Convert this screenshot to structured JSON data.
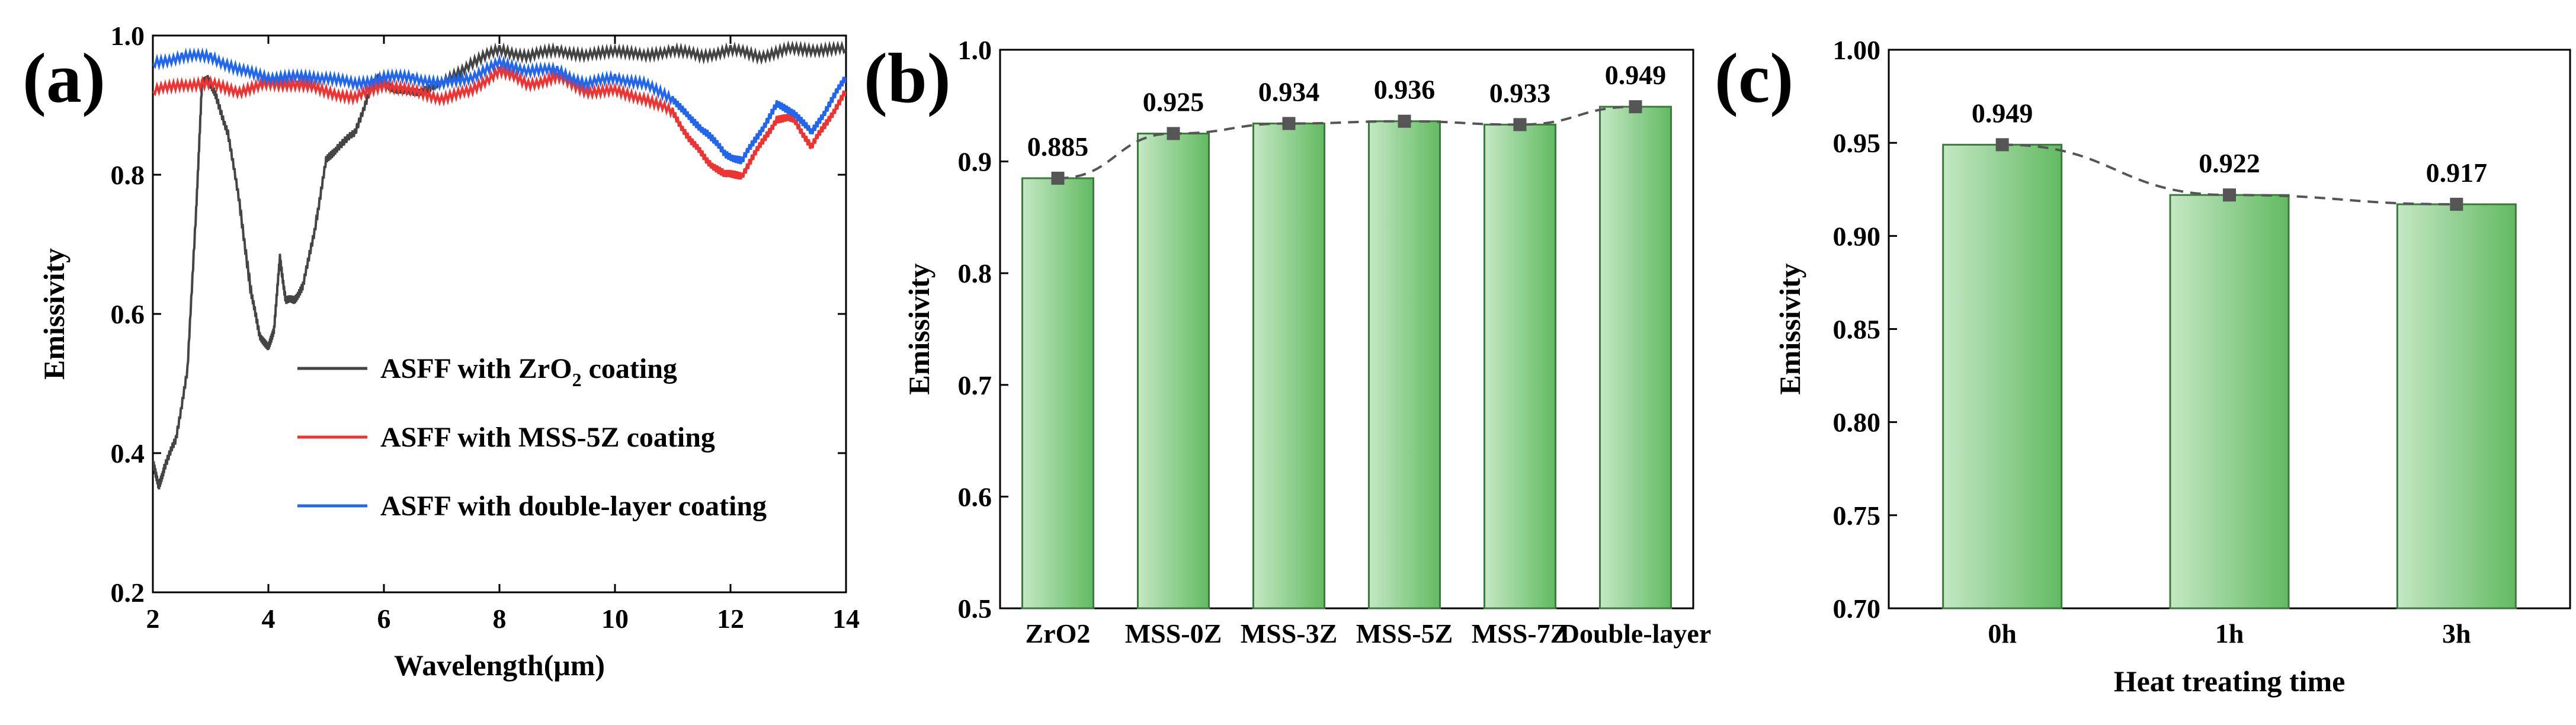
{
  "figure": {
    "panel_labels": [
      "(a)",
      "(b)",
      "(c)"
    ],
    "colors": {
      "axis": "#000000",
      "bar_light": "#bfe6bf",
      "bar_dark": "#6cc06c",
      "bar_edge": "#3a7a3a",
      "connector": "#555555",
      "series_black": "#444444",
      "series_red": "#ee3333",
      "series_blue": "#2266ee"
    }
  },
  "chart_data": [
    {
      "type": "line",
      "panel": "(a)",
      "xlabel": "Wavelength(μm)",
      "ylabel": "Emissivity",
      "xlim": [
        2,
        14
      ],
      "ylim": [
        0.2,
        1.0
      ],
      "xticks": [
        2,
        4,
        6,
        8,
        10,
        12,
        14
      ],
      "yticks": [
        0.2,
        0.4,
        0.6,
        0.8,
        1.0
      ],
      "xtick_labels": [
        "2",
        "4",
        "6",
        "8",
        "10",
        "12",
        "14"
      ],
      "ytick_labels": [
        "0.2",
        "0.4",
        "0.6",
        "0.8",
        "1.0"
      ],
      "legend_position": "center-right",
      "series": [
        {
          "name": "ASFF with ZrO2 coating",
          "name_main": "ASFF with ZrO",
          "name_sub": "2",
          "name_tail": " coating",
          "color_key": "series_black",
          "x": [
            2.0,
            2.1,
            2.2,
            2.4,
            2.6,
            2.75,
            2.85,
            2.95,
            3.1,
            3.3,
            3.5,
            3.7,
            3.85,
            4.0,
            4.1,
            4.2,
            4.3,
            4.45,
            4.6,
            4.8,
            5.0,
            5.2,
            5.5,
            5.75,
            5.9,
            6.2,
            6.6,
            7.0,
            7.5,
            8.0,
            8.5,
            9.0,
            9.5,
            10.0,
            10.5,
            11.0,
            11.5,
            12.0,
            12.5,
            13.0,
            13.5,
            14.0
          ],
          "y": [
            0.39,
            0.35,
            0.38,
            0.42,
            0.52,
            0.75,
            0.93,
            0.94,
            0.91,
            0.86,
            0.76,
            0.63,
            0.57,
            0.55,
            0.58,
            0.68,
            0.62,
            0.62,
            0.64,
            0.72,
            0.82,
            0.84,
            0.86,
            0.92,
            0.94,
            0.92,
            0.92,
            0.93,
            0.96,
            0.98,
            0.97,
            0.98,
            0.97,
            0.98,
            0.97,
            0.98,
            0.97,
            0.98,
            0.97,
            0.98,
            0.98,
            0.98
          ]
        },
        {
          "name": "ASFF with MSS-5Z coating",
          "color_key": "series_red",
          "x": [
            2.0,
            2.5,
            3.0,
            3.5,
            4.0,
            4.5,
            5.0,
            5.5,
            6.0,
            6.5,
            7.0,
            7.5,
            8.0,
            8.5,
            9.0,
            9.5,
            10.0,
            10.5,
            11.0,
            11.3,
            11.6,
            11.9,
            12.2,
            12.5,
            12.8,
            13.1,
            13.4,
            13.7,
            14.0
          ],
          "y": [
            0.92,
            0.93,
            0.93,
            0.92,
            0.93,
            0.93,
            0.92,
            0.91,
            0.93,
            0.92,
            0.91,
            0.92,
            0.95,
            0.93,
            0.94,
            0.92,
            0.92,
            0.91,
            0.89,
            0.85,
            0.82,
            0.8,
            0.8,
            0.84,
            0.88,
            0.88,
            0.84,
            0.88,
            0.92
          ]
        },
        {
          "name": "ASFF with double-layer coating",
          "color_key": "series_blue",
          "x": [
            2.0,
            2.5,
            3.0,
            3.5,
            4.0,
            4.5,
            5.0,
            5.5,
            6.0,
            6.5,
            7.0,
            7.5,
            8.0,
            8.5,
            9.0,
            9.5,
            10.0,
            10.5,
            11.0,
            11.3,
            11.6,
            11.9,
            12.2,
            12.5,
            12.8,
            13.1,
            13.4,
            13.7,
            14.0
          ],
          "y": [
            0.96,
            0.97,
            0.97,
            0.95,
            0.94,
            0.94,
            0.94,
            0.93,
            0.94,
            0.94,
            0.93,
            0.94,
            0.96,
            0.95,
            0.95,
            0.93,
            0.94,
            0.93,
            0.91,
            0.88,
            0.86,
            0.83,
            0.82,
            0.86,
            0.9,
            0.89,
            0.86,
            0.9,
            0.94
          ]
        }
      ]
    },
    {
      "type": "bar",
      "panel": "(b)",
      "xlabel": "",
      "ylabel": "Emissivity",
      "ylim": [
        0.5,
        1.0
      ],
      "yticks": [
        0.5,
        0.6,
        0.7,
        0.8,
        0.9,
        1.0
      ],
      "ytick_labels": [
        "0.5",
        "0.6",
        "0.7",
        "0.8",
        "0.9",
        "1.0"
      ],
      "categories": [
        "ZrO2",
        "MSS-0Z",
        "MSS-3Z",
        "MSS-5Z",
        "MSS-7Z",
        "Double-layer"
      ],
      "values": [
        0.885,
        0.925,
        0.934,
        0.936,
        0.933,
        0.949
      ],
      "value_labels": [
        "0.885",
        "0.925",
        "0.934",
        "0.936",
        "0.933",
        "0.949"
      ],
      "connector_line": "dashed"
    },
    {
      "type": "bar",
      "panel": "(c)",
      "xlabel": "Heat treating time",
      "ylabel": "Emissivity",
      "ylim": [
        0.7,
        1.0
      ],
      "yticks": [
        0.7,
        0.75,
        0.8,
        0.85,
        0.9,
        0.95,
        1.0
      ],
      "ytick_labels": [
        "0.70",
        "0.75",
        "0.80",
        "0.85",
        "0.90",
        "0.95",
        "1.00"
      ],
      "categories": [
        "0h",
        "1h",
        "3h"
      ],
      "values": [
        0.949,
        0.922,
        0.917
      ],
      "value_labels": [
        "0.949",
        "0.922",
        "0.917"
      ],
      "connector_line": "dashed"
    }
  ]
}
